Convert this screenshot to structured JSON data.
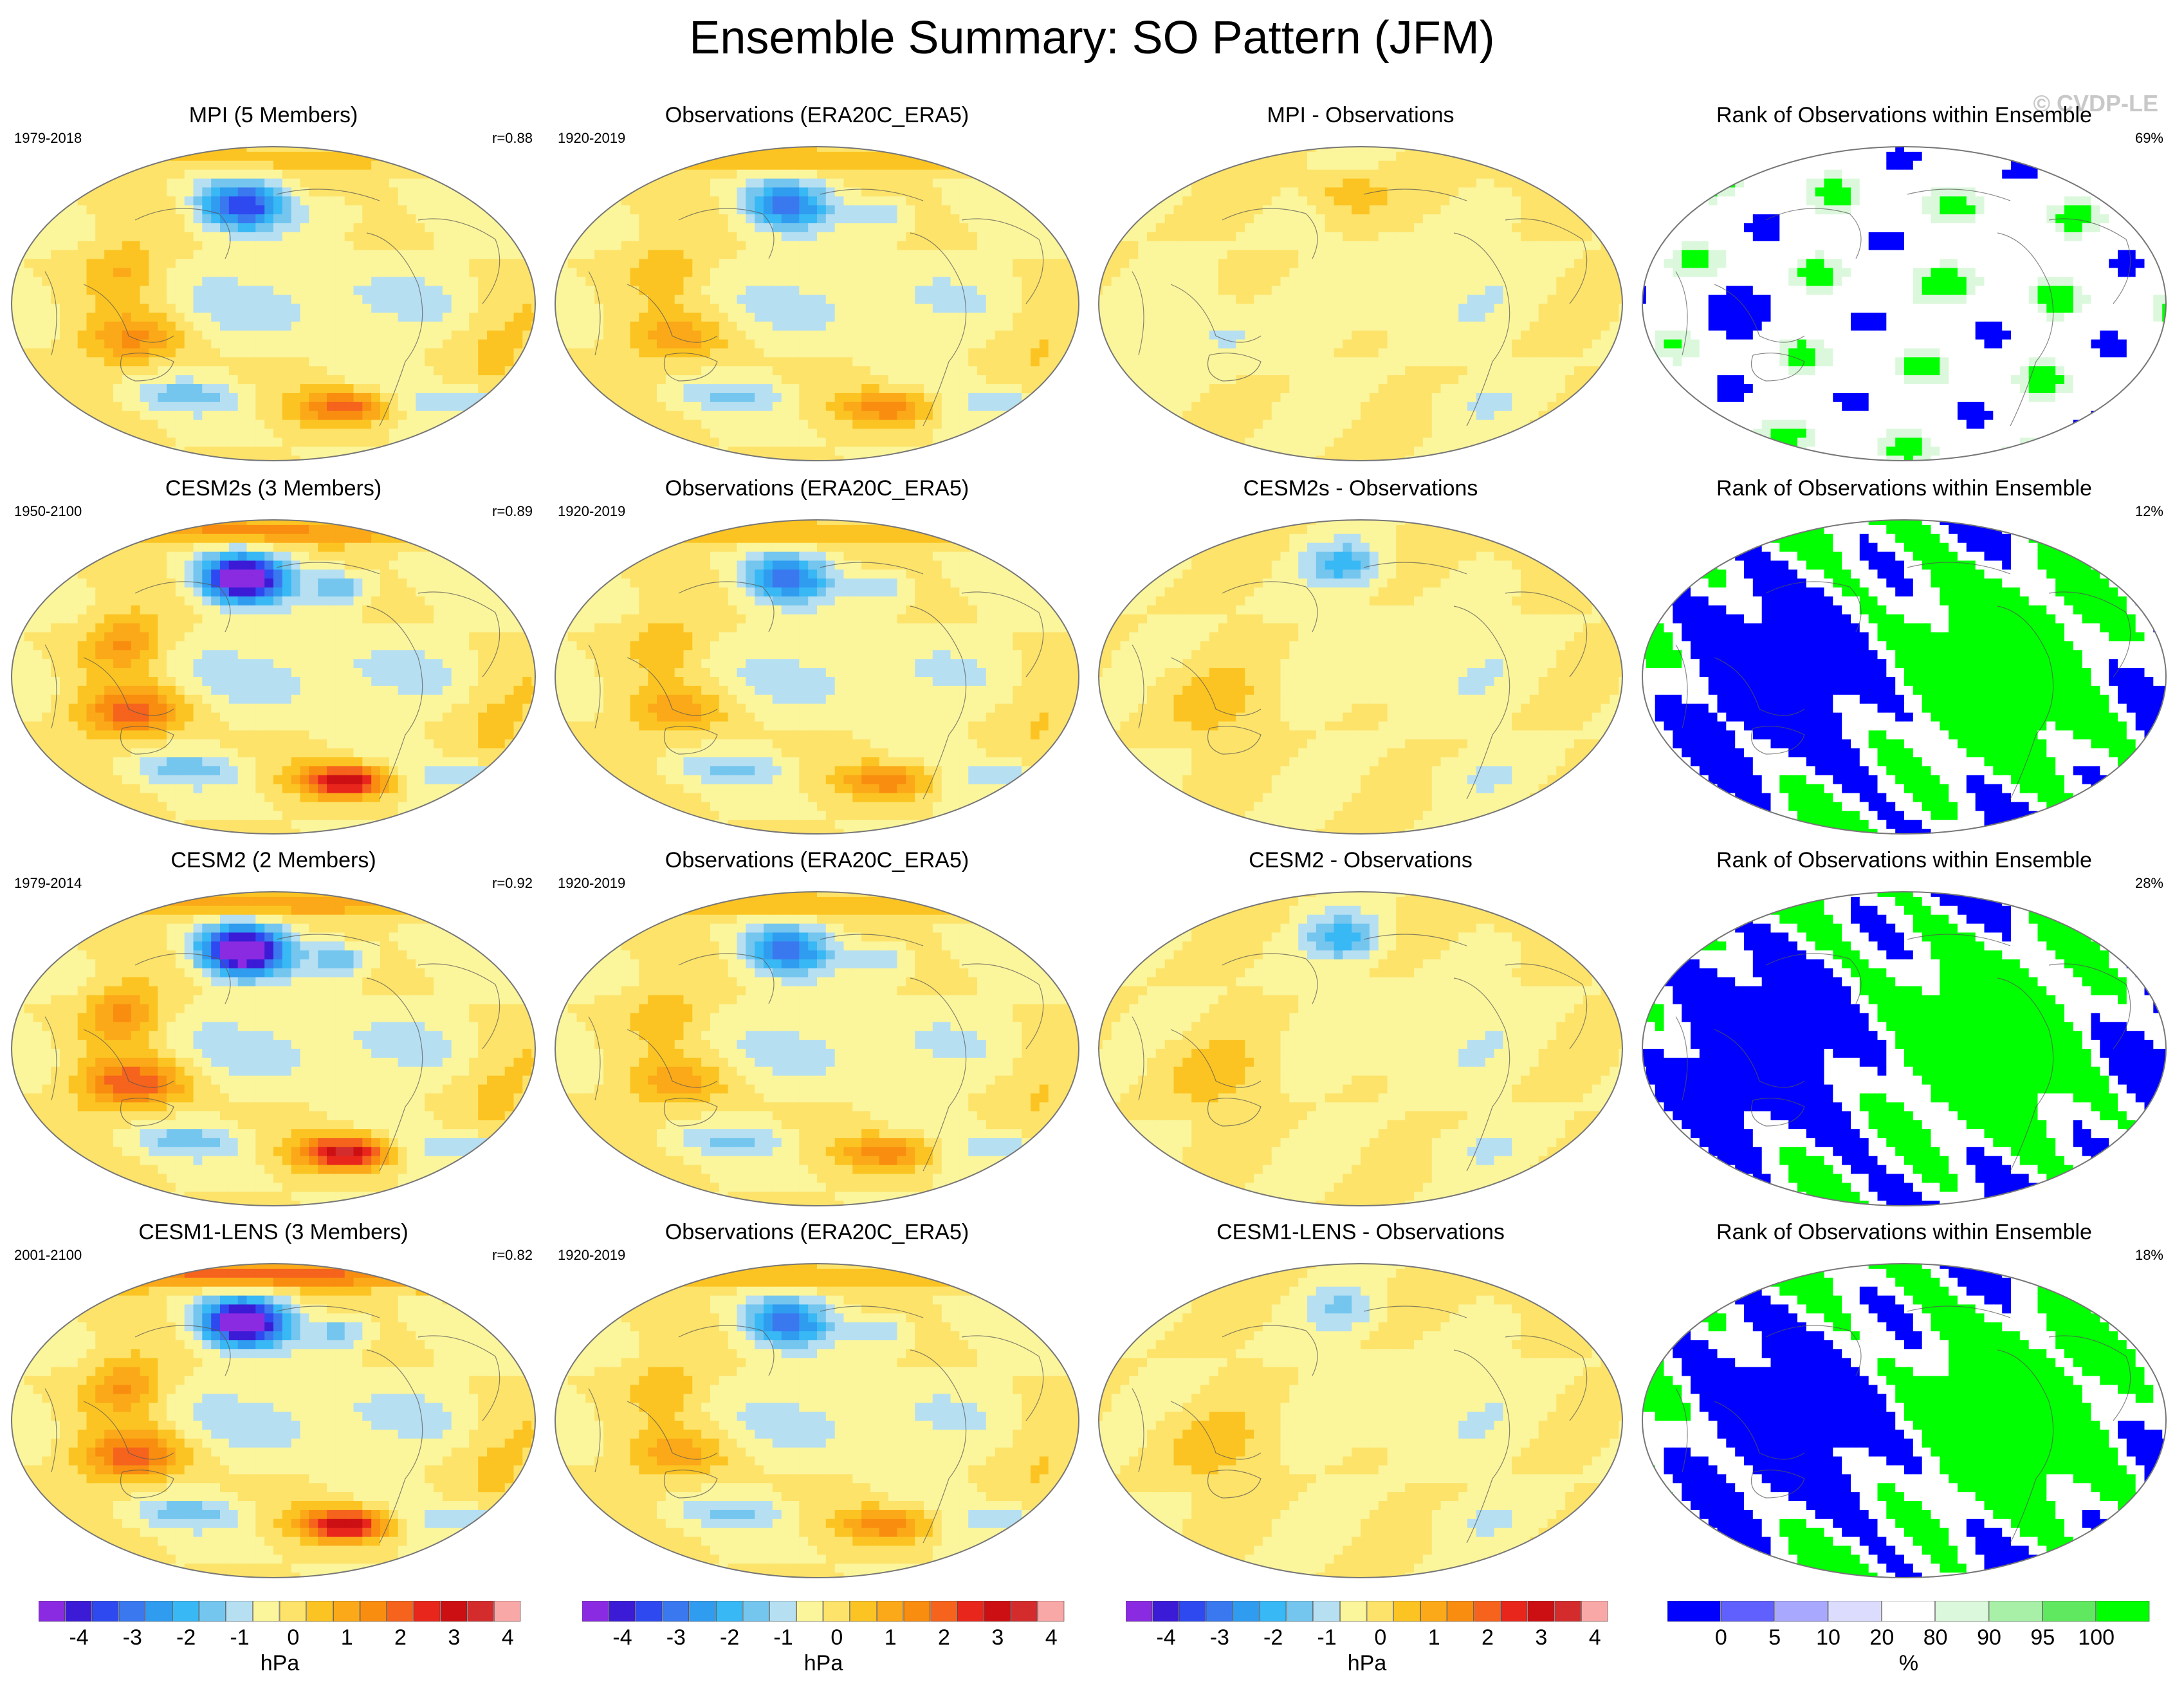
{
  "figure": {
    "title": "Ensemble Summary: SO Pattern (JFM)",
    "watermark": "© CVDP-LE"
  },
  "rows": [
    {
      "model": {
        "title": "MPI (5 Members)",
        "years": "1979-2018",
        "r": "r=0.88",
        "intensity": 1.0,
        "warm_north": 0.5,
        "dipole": 0.4
      },
      "obs": {
        "title": "Observations (ERA20C_ERA5)",
        "years": "1920-2019"
      },
      "diff": {
        "title": "MPI - Observations",
        "north_anom": 0.6
      },
      "rank": {
        "title": "Rank of Observations within Ensemble",
        "pct": "69%",
        "mode": "sparse"
      }
    },
    {
      "model": {
        "title": "CESM2s (3 Members)",
        "years": "1950-2100",
        "r": "r=0.89",
        "intensity": 1.5,
        "warm_north": 1.0,
        "dipole": 1.0
      },
      "obs": {
        "title": "Observations (ERA20C_ERA5)",
        "years": "1920-2019"
      },
      "diff": {
        "title": "CESM2s - Observations",
        "north_anom": -1.0
      },
      "rank": {
        "title": "Rank of Observations within Ensemble",
        "pct": "12%",
        "mode": "full"
      }
    },
    {
      "model": {
        "title": "CESM2 (2 Members)",
        "years": "1979-2014",
        "r": "r=0.92",
        "intensity": 1.6,
        "warm_north": 0.9,
        "dipole": 1.0
      },
      "obs": {
        "title": "Observations (ERA20C_ERA5)",
        "years": "1920-2019"
      },
      "diff": {
        "title": "CESM2 - Observations",
        "north_anom": -1.1
      },
      "rank": {
        "title": "Rank of Observations within Ensemble",
        "pct": "28%",
        "mode": "full2"
      }
    },
    {
      "model": {
        "title": "CESM1-LENS (3 Members)",
        "years": "2001-2100",
        "r": "r=0.82",
        "intensity": 1.5,
        "warm_north": 1.4,
        "dipole": 0.9
      },
      "obs": {
        "title": "Observations (ERA20C_ERA5)",
        "years": "1920-2019"
      },
      "diff": {
        "title": "CESM1-LENS - Observations",
        "north_anom": -0.6
      },
      "rank": {
        "title": "Rank of Observations within Ensemble",
        "pct": "18%",
        "mode": "full3"
      }
    }
  ],
  "colorbar": {
    "unit": "hPa",
    "tick_labels": [
      "-4",
      "-3",
      "-2",
      "-1",
      "0",
      "1",
      "2",
      "3",
      "4"
    ],
    "colors": [
      "#8a2be2",
      "#3b1bd6",
      "#2e49f0",
      "#3a78f0",
      "#2f9cf0",
      "#38b8f5",
      "#74c6ee",
      "#b6dff2",
      "#fbf59c",
      "#fde36a",
      "#fcc422",
      "#fba918",
      "#f98d10",
      "#f5631d",
      "#e9261c",
      "#cc0f12",
      "#d42c2c",
      "#f9a8a8"
    ]
  },
  "rank_colorbar": {
    "unit": "%",
    "tick_labels": [
      "0",
      "5",
      "10",
      "20",
      "80",
      "90",
      "95",
      "100"
    ],
    "colors": [
      "#0000ff",
      "#6060ff",
      "#a8a8ff",
      "#dcdcff",
      "#ffffff",
      "#dcf8dc",
      "#a8f0a8",
      "#60e860",
      "#00ff00"
    ]
  }
}
